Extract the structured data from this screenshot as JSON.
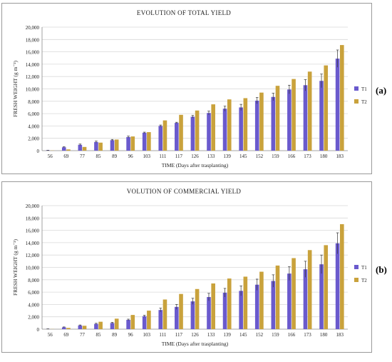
{
  "chart_data": [
    {
      "type": "bar",
      "title": "EVOLUTION OF TOTAL YIELD",
      "xlabel": "TIME (Days after trasplanting)",
      "ylabel": "FRESH WEIGHT (g m⁻²)",
      "ylim": [
        0,
        20000
      ],
      "yticks": [
        "0",
        "2,000",
        "4,000",
        "6,000",
        "8,000",
        "10,000",
        "12,000",
        "14,000",
        "16,000",
        "18,000",
        "20,000"
      ],
      "grid": true,
      "legend_position": "right",
      "panel_label": "(a)",
      "categories": [
        "56",
        "69",
        "77",
        "85",
        "89",
        "96",
        "103",
        "111",
        "117",
        "126",
        "133",
        "139",
        "145",
        "152",
        "159",
        "166",
        "173",
        "180",
        "183"
      ],
      "series": [
        {
          "name": "T1",
          "color": "#6a5acd",
          "values": [
            50,
            550,
            950,
            1400,
            1700,
            2200,
            2900,
            4000,
            4500,
            5500,
            6100,
            6800,
            7000,
            8100,
            8700,
            9900,
            10600,
            11300,
            14900
          ],
          "errors": [
            20,
            80,
            120,
            150,
            120,
            150,
            100,
            150,
            100,
            200,
            300,
            400,
            500,
            500,
            600,
            700,
            900,
            1100,
            1400
          ]
        },
        {
          "name": "T2",
          "color": "#c9a23c",
          "values": [
            30,
            200,
            600,
            1300,
            1800,
            2300,
            3000,
            4900,
            5800,
            6500,
            7500,
            8300,
            8500,
            9400,
            10500,
            11600,
            12800,
            13800,
            17100
          ]
        }
      ]
    },
    {
      "type": "bar",
      "title": "VOLUTION OF COMMERCIAL YIELD",
      "xlabel": "TIME (Days after trasplanting)",
      "ylabel": "FRESH WEIGHT (g m⁻²)",
      "ylim": [
        0,
        20000
      ],
      "yticks": [
        "0",
        "2,000",
        "4,000",
        "6,000",
        "8,000",
        "10,000",
        "12,000",
        "14,000",
        "16,000",
        "18,000",
        "20,000"
      ],
      "grid": true,
      "legend_position": "right",
      "panel_label": "(b)",
      "categories": [
        "56",
        "69",
        "77",
        "85",
        "89",
        "96",
        "103",
        "111",
        "117",
        "126",
        "133",
        "139",
        "145",
        "152",
        "159",
        "166",
        "173",
        "180",
        "183"
      ],
      "series": [
        {
          "name": "T1",
          "color": "#6a5acd",
          "values": [
            30,
            300,
            600,
            850,
            1000,
            1500,
            2100,
            3100,
            3600,
            4500,
            5200,
            5900,
            6200,
            7200,
            7800,
            9000,
            9700,
            10500,
            13900
          ],
          "errors": [
            20,
            60,
            80,
            100,
            100,
            120,
            150,
            300,
            400,
            500,
            600,
            700,
            800,
            900,
            1000,
            1100,
            1300,
            1500,
            1700
          ]
        },
        {
          "name": "T2",
          "color": "#c9a23c",
          "values": [
            20,
            200,
            550,
            1200,
            1700,
            2300,
            3000,
            4800,
            5700,
            6500,
            7400,
            8200,
            8500,
            9300,
            10300,
            11500,
            12800,
            13600,
            17000
          ]
        }
      ]
    }
  ]
}
